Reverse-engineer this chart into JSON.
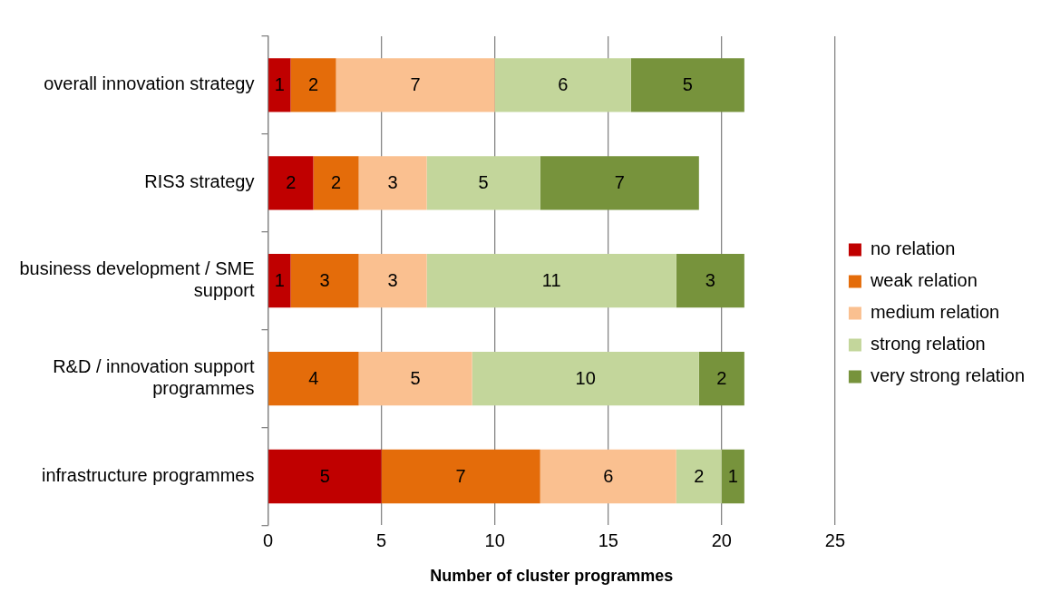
{
  "chart_data": {
    "type": "bar",
    "orientation": "horizontal",
    "stacked": true,
    "xlabel": "Number of cluster programmes",
    "categories": [
      "overall innovation strategy",
      "RIS3 strategy",
      "business development / SME support",
      "R&D / innovation support programmes",
      "infrastructure programmes"
    ],
    "series": [
      {
        "name": "no relation",
        "color": "#c00000",
        "values": [
          1,
          2,
          1,
          null,
          5
        ]
      },
      {
        "name": "weak relation",
        "color": "#e46c0a",
        "values": [
          2,
          2,
          3,
          4,
          7
        ]
      },
      {
        "name": "medium relation",
        "color": "#fac090",
        "values": [
          7,
          3,
          3,
          5,
          6
        ]
      },
      {
        "name": "strong relation",
        "color": "#c3d69b",
        "values": [
          6,
          5,
          11,
          10,
          2
        ]
      },
      {
        "name": "very strong relation",
        "color": "#77933c",
        "values": [
          5,
          7,
          3,
          2,
          1
        ]
      }
    ],
    "xlim": [
      0,
      25
    ],
    "xticks": [
      0,
      5,
      10,
      15,
      20,
      25
    ],
    "grid": "x",
    "legend": "right",
    "data_labels": true
  }
}
